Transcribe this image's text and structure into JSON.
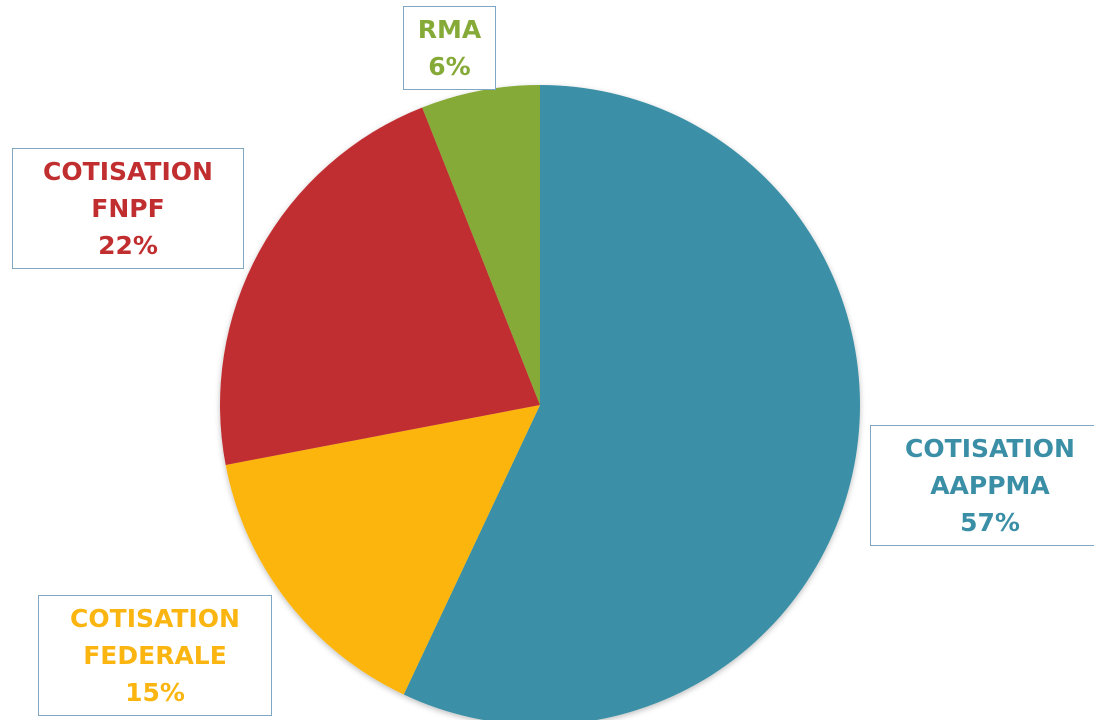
{
  "chart_data": {
    "type": "pie",
    "categories": [
      "COTISATION AAPPMA",
      "COTISATION FEDERALE",
      "COTISATION FNPF",
      "RMA"
    ],
    "values": [
      57,
      15,
      22,
      6
    ],
    "value_labels": [
      "57%",
      "15%",
      "22%",
      "6%"
    ],
    "colors": [
      "#3a8fa6",
      "#fbb511",
      "#c12e30",
      "#86aa37"
    ]
  }
}
